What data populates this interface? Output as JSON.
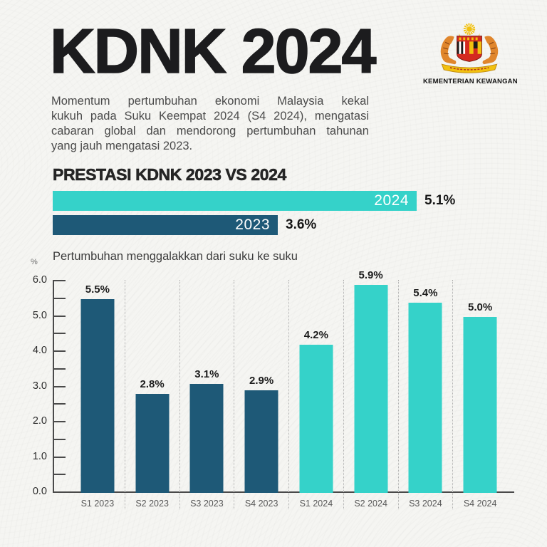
{
  "page": {
    "background": "#f5f5f2"
  },
  "header": {
    "title": "KDNK 2024",
    "description_lines": [
      "Momentum pertumbuhan ekonomi Malaysia kekal",
      "kukuh pada Suku Keempat 2024 (S4 2024), mengatasi",
      "cabaran global dan mendorong pertumbuhan tahunan",
      "yang jauh mengatasi 2023."
    ],
    "logo_caption": "KEMENTERIAN KEWANGAN"
  },
  "colors": {
    "teal_2024": "#35d2c9",
    "dark_blue_2023": "#1e5977",
    "axis": "#4a4a4a",
    "text_dark": "#1c1c1e"
  },
  "chart_data": [
    {
      "type": "bar",
      "orientation": "horizontal",
      "title": "PRESTASI KDNK 2023 VS 2024",
      "categories": [
        "2024",
        "2023"
      ],
      "values": [
        5.1,
        3.6
      ],
      "value_labels": [
        "5.1%",
        "3.6%"
      ],
      "colors": [
        "#35d2c9",
        "#1e5977"
      ],
      "legend_position": "none"
    },
    {
      "type": "bar",
      "title": "Pertumbuhan menggalakkan dari suku ke suku",
      "xlabel": "",
      "ylabel": "%",
      "categories": [
        "S1 2023",
        "S2 2023",
        "S3 2023",
        "S4 2023",
        "S1 2024",
        "S2 2024",
        "S3 2024",
        "S4 2024"
      ],
      "values": [
        5.5,
        2.8,
        3.1,
        2.9,
        4.2,
        5.9,
        5.4,
        5.0
      ],
      "value_labels": [
        "5.5%",
        "2.8%",
        "3.1%",
        "2.9%",
        "4.2%",
        "5.9%",
        "5.4%",
        "5.0%"
      ],
      "colors": [
        "#1e5977",
        "#1e5977",
        "#1e5977",
        "#1e5977",
        "#35d2c9",
        "#35d2c9",
        "#35d2c9",
        "#35d2c9"
      ],
      "ylim": [
        0,
        6
      ],
      "y_ticks": [
        "0.0",
        "1.0",
        "2.0",
        "3.0",
        "4.0",
        "5.0",
        "6.0"
      ],
      "minor_tick_step": 0.5,
      "grid": "vertical-dotted-column-separators",
      "legend_position": "none"
    }
  ]
}
